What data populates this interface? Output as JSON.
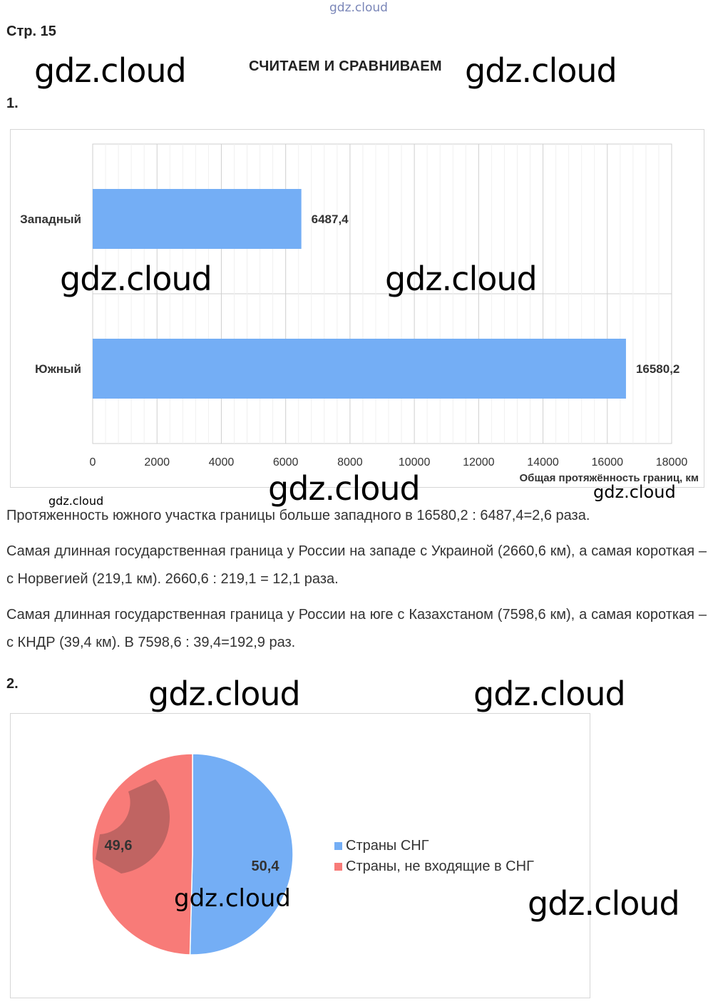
{
  "watermarks": {
    "top": "gdz.cloud",
    "large": "gdz.cloud",
    "small": "gdz.cloud"
  },
  "page_label": "Стр. 15",
  "heading": "СЧИТАЕМ И СРАВНИВАЕМ",
  "task1": {
    "number": "1.",
    "chart_data": {
      "type": "bar",
      "orientation": "horizontal",
      "categories": [
        "Западный",
        "Южный"
      ],
      "values": [
        6487.4,
        16580.2
      ],
      "value_labels": [
        "6487,4",
        "16580,2"
      ],
      "xlabel": "Общая протяжённость границ, км",
      "xlim": [
        0,
        18000
      ],
      "xticks": [
        0,
        2000,
        4000,
        6000,
        8000,
        10000,
        12000,
        14000,
        16000,
        18000
      ],
      "grid": true,
      "color": "#74aef5"
    },
    "paragraphs": [
      "Протяженность южного участка границы больше западного в 16580,2 : 6487,4=2,6 раза.",
      "Самая длинная государственная граница у России на западе с Украиной (2660,6 км), а самая короткая – с Норвегией (219,1 км). 2660,6 : 219,1 = 12,1 раза.",
      "Самая длинная государственная граница у России на юге с Казахстаном (7598,6 км), а самая короткая – с КНДР (39,4 км). В 7598,6 : 39,4=192,9 раз."
    ]
  },
  "task2": {
    "number": "2.",
    "chart_data": {
      "type": "pie",
      "slices": [
        {
          "name": "Страны СНГ",
          "value": 50.4,
          "label": "50,4",
          "color": "#74aef5"
        },
        {
          "name": "Страны, не входящие в СНГ",
          "value": 49.6,
          "label": "49,6",
          "color": "#f87b78"
        }
      ],
      "legend": "right"
    }
  }
}
